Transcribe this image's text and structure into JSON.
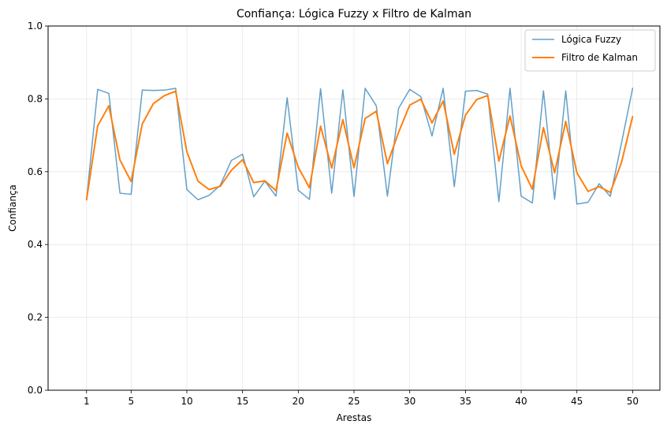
{
  "chart_data": {
    "type": "line",
    "title": "Confiança: Lógica Fuzzy x Filtro de Kalman",
    "xlabel": "Arestas",
    "ylabel": "Confiança",
    "xlim": [
      -2.45,
      52.45
    ],
    "ylim": [
      0.0,
      1.0
    ],
    "xticks": [
      1,
      5,
      10,
      15,
      20,
      25,
      30,
      35,
      40,
      45,
      50
    ],
    "yticks": [
      0.0,
      0.2,
      0.4,
      0.6,
      0.8,
      1.0
    ],
    "ytick_labels": [
      "0.0",
      "0.2",
      "0.4",
      "0.6",
      "0.8",
      "1.0"
    ],
    "grid": true,
    "legend_position": "top-right",
    "x": [
      1,
      2,
      3,
      4,
      5,
      6,
      7,
      8,
      9,
      10,
      11,
      12,
      13,
      14,
      15,
      16,
      17,
      18,
      19,
      20,
      21,
      22,
      23,
      24,
      25,
      26,
      27,
      28,
      29,
      30,
      31,
      32,
      33,
      34,
      35,
      36,
      37,
      38,
      39,
      40,
      41,
      42,
      43,
      44,
      45,
      46,
      47,
      48,
      49,
      50
    ],
    "series": [
      {
        "name": "Lógica Fuzzy",
        "color": "#1f77b4",
        "values": [
          0.523,
          0.826,
          0.815,
          0.541,
          0.538,
          0.824,
          0.823,
          0.824,
          0.829,
          0.551,
          0.523,
          0.535,
          0.563,
          0.631,
          0.648,
          0.531,
          0.574,
          0.533,
          0.803,
          0.549,
          0.524,
          0.828,
          0.541,
          0.825,
          0.532,
          0.829,
          0.781,
          0.533,
          0.774,
          0.826,
          0.806,
          0.698,
          0.829,
          0.559,
          0.821,
          0.823,
          0.813,
          0.518,
          0.829,
          0.533,
          0.514,
          0.822,
          0.524,
          0.822,
          0.511,
          0.516,
          0.567,
          0.532,
          0.678,
          0.829
        ]
      },
      {
        "name": "Filtro de Kalman",
        "color": "#ff7f0e",
        "values": [
          0.523,
          0.726,
          0.781,
          0.632,
          0.573,
          0.731,
          0.787,
          0.809,
          0.821,
          0.655,
          0.574,
          0.551,
          0.56,
          0.604,
          0.633,
          0.57,
          0.575,
          0.548,
          0.706,
          0.612,
          0.556,
          0.725,
          0.61,
          0.743,
          0.611,
          0.746,
          0.766,
          0.622,
          0.708,
          0.783,
          0.799,
          0.734,
          0.794,
          0.648,
          0.755,
          0.798,
          0.809,
          0.629,
          0.753,
          0.616,
          0.552,
          0.721,
          0.597,
          0.738,
          0.597,
          0.546,
          0.559,
          0.543,
          0.625,
          0.751
        ]
      }
    ]
  }
}
